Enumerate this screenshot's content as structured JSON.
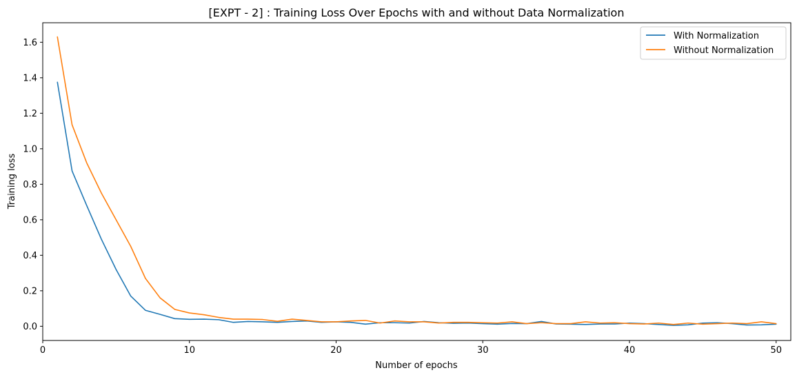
{
  "chart_data": {
    "type": "line",
    "title": "[EXPT - 2] : Training Loss Over Epochs with and without Data Normalization",
    "xlabel": "Number of epochs",
    "ylabel": "Training loss",
    "xlim": [
      0,
      51
    ],
    "ylim": [
      -0.08,
      1.71
    ],
    "x_ticks": [
      0,
      10,
      20,
      30,
      40,
      50
    ],
    "y_ticks": [
      0.0,
      0.2,
      0.4,
      0.6,
      0.8,
      1.0,
      1.2,
      1.4,
      1.6
    ],
    "grid": false,
    "legend_position": "top-right",
    "x": [
      1,
      2,
      3,
      4,
      5,
      6,
      7,
      8,
      9,
      10,
      11,
      12,
      13,
      14,
      15,
      16,
      17,
      18,
      19,
      20,
      21,
      22,
      23,
      24,
      25,
      26,
      27,
      28,
      29,
      30,
      31,
      32,
      33,
      34,
      35,
      36,
      37,
      38,
      39,
      40,
      41,
      42,
      43,
      44,
      45,
      46,
      47,
      48,
      49,
      50
    ],
    "series": [
      {
        "name": "With Normalization",
        "color": "#1f77b4",
        "values": [
          1.375,
          0.875,
          0.68,
          0.49,
          0.32,
          0.17,
          0.09,
          0.067,
          0.043,
          0.039,
          0.04,
          0.037,
          0.022,
          0.027,
          0.025,
          0.022,
          0.027,
          0.03,
          0.022,
          0.025,
          0.022,
          0.012,
          0.02,
          0.02,
          0.018,
          0.027,
          0.02,
          0.017,
          0.018,
          0.015,
          0.012,
          0.016,
          0.015,
          0.027,
          0.013,
          0.012,
          0.01,
          0.013,
          0.013,
          0.018,
          0.015,
          0.01,
          0.005,
          0.008,
          0.018,
          0.02,
          0.015,
          0.007,
          0.008,
          0.012
        ]
      },
      {
        "name": "Without Normalization",
        "color": "#ff7f0e",
        "values": [
          1.63,
          1.135,
          0.92,
          0.75,
          0.6,
          0.45,
          0.27,
          0.16,
          0.095,
          0.075,
          0.065,
          0.05,
          0.04,
          0.04,
          0.038,
          0.028,
          0.04,
          0.033,
          0.025,
          0.025,
          0.03,
          0.033,
          0.018,
          0.03,
          0.025,
          0.025,
          0.018,
          0.022,
          0.022,
          0.02,
          0.018,
          0.025,
          0.015,
          0.02,
          0.015,
          0.015,
          0.025,
          0.018,
          0.02,
          0.015,
          0.013,
          0.018,
          0.01,
          0.018,
          0.012,
          0.015,
          0.018,
          0.015,
          0.025,
          0.015
        ]
      }
    ]
  }
}
